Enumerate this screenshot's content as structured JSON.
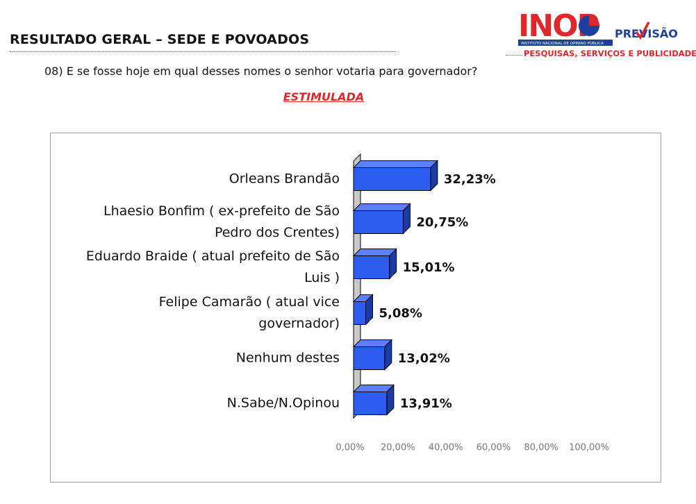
{
  "header": {
    "title": "RESULTADO GERAL – SEDE E POVOADOS"
  },
  "logo": {
    "brand_letters": "INOP",
    "brand_suffix": "PREVISÃO",
    "institute_text": "INSTITUTO NACIONAL DE OPINIÃO PÚBLICA",
    "tagline": "PESQUISAS, SERVIÇOS E PUBLICIDADES"
  },
  "question": "08) E se fosse hoje em qual desses nomes o senhor votaria para governador?",
  "subtitle": "ESTIMULADA",
  "colors": {
    "bar_front": "#2f5cf0",
    "bar_top": "#5b80ff",
    "bar_side": "#1a3aa6",
    "wall": "#c8c8c8",
    "accent_red": "#e0262b"
  },
  "chart_data": {
    "type": "bar",
    "orientation": "horizontal",
    "style": "3d",
    "categories": [
      [
        "Orleans Brandão"
      ],
      [
        "Lhaesio Bonfim ( ex-prefeito de São",
        "Pedro dos Crentes)"
      ],
      [
        "Eduardo Braide ( atual prefeito de São",
        "Luis )"
      ],
      [
        "Felipe Camarão ( atual vice",
        "governador)"
      ],
      [
        "Nenhum destes"
      ],
      [
        "N.Sabe/N.Opinou"
      ]
    ],
    "values": [
      32.23,
      20.75,
      15.01,
      5.08,
      13.02,
      13.91
    ],
    "value_labels": [
      "32,23%",
      "20,75%",
      "15,01%",
      "5,08%",
      "13,02%",
      "13,91%"
    ],
    "xlim": [
      0,
      100
    ],
    "ticks": [
      0,
      20,
      40,
      60,
      80,
      100
    ],
    "tick_labels": [
      "0,00%",
      "20,00%",
      "40,00%",
      "60,00%",
      "80,00%",
      "100,00%"
    ],
    "grid": false,
    "legend": "none"
  }
}
